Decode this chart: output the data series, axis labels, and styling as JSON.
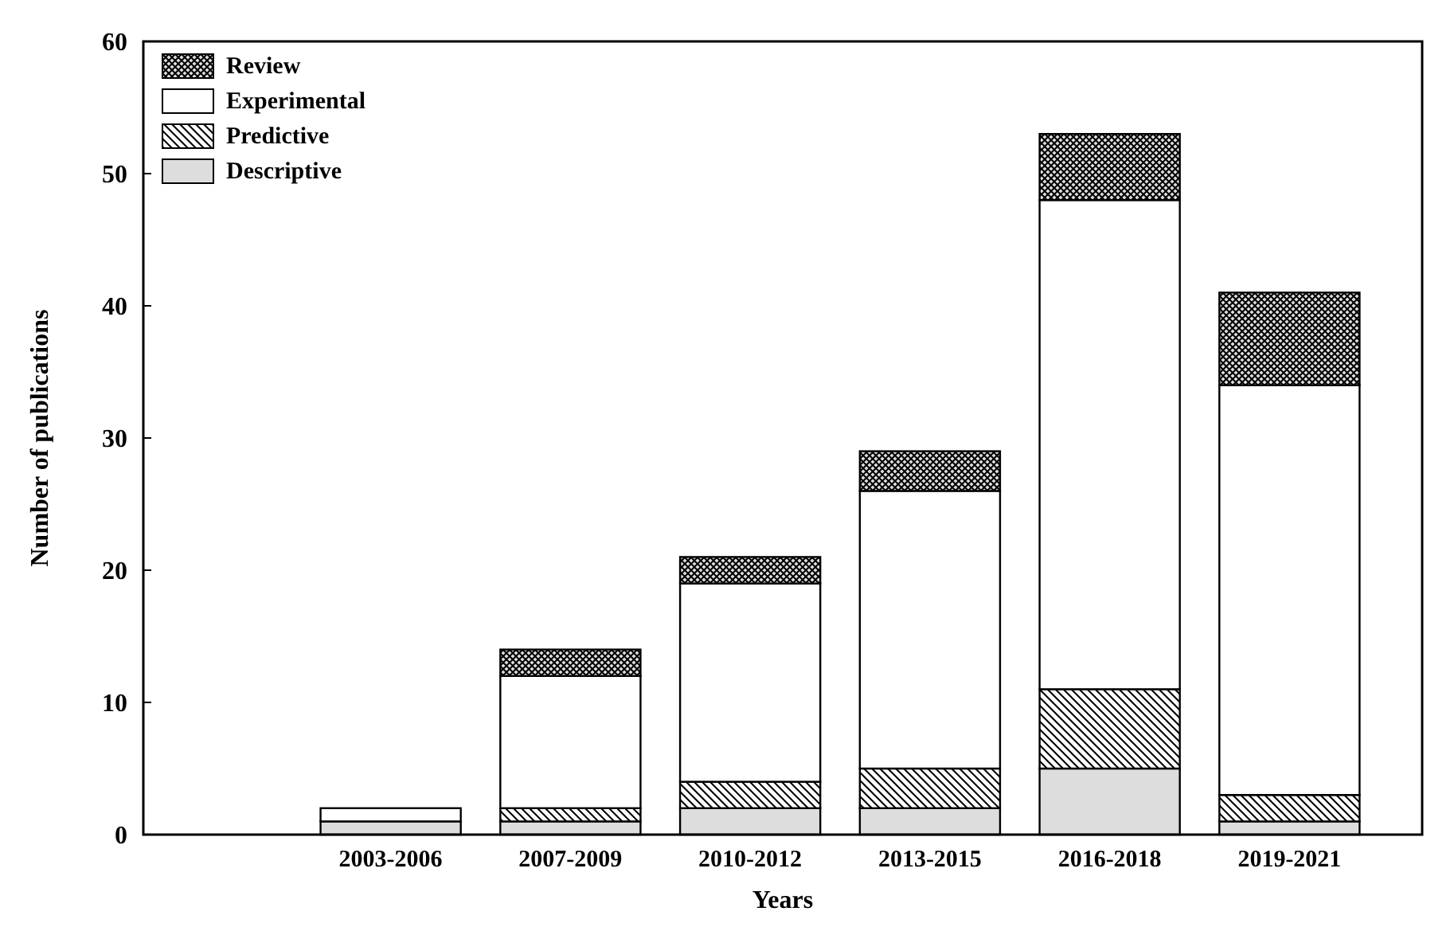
{
  "chart_data": {
    "type": "bar",
    "stacked": true,
    "xlabel": "Years",
    "ylabel": "Number of publications",
    "categories": [
      "2003-2006",
      "2007-2009",
      "2010-2012",
      "2013-2015",
      "2016-2018",
      "2019-2021"
    ],
    "series": [
      {
        "name": "Descriptive",
        "color": "#dddddd",
        "values": [
          1,
          1,
          2,
          2,
          5,
          1
        ]
      },
      {
        "name": "Predictive",
        "color": "#000000",
        "values": [
          0,
          1,
          2,
          3,
          6,
          2
        ]
      },
      {
        "name": "Experimental",
        "color": "#ffffff",
        "values": [
          1,
          10,
          15,
          21,
          37,
          31
        ]
      },
      {
        "name": "Review",
        "color": "#000000",
        "values": [
          0,
          2,
          2,
          3,
          5,
          7
        ]
      }
    ],
    "ylim": [
      0,
      60
    ],
    "yticks": [
      0,
      10,
      20,
      30,
      40,
      50,
      60
    ],
    "grid": false,
    "legend": "top left"
  }
}
